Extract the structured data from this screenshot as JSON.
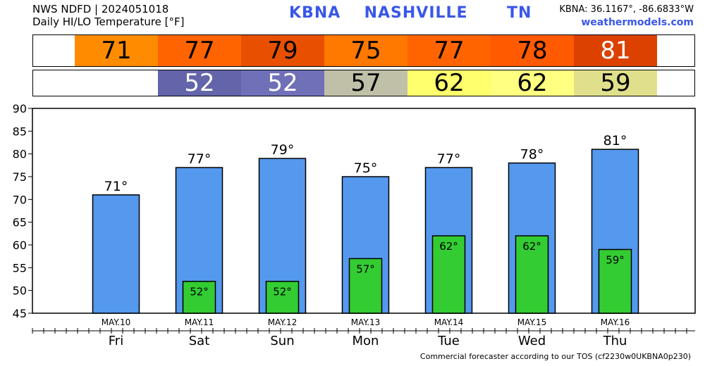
{
  "header": {
    "line1": "NWS NDFD | 2024051018",
    "line2": "Daily HI/LO Temperature [°F]",
    "station": "KBNA",
    "city": "NASHVILLE",
    "state": "TN",
    "coords": "KBNA: 36.1167°, -86.6833°W",
    "site": "weathermodels.com"
  },
  "footer": "Commercial forecaster according to our TOS (cf2230w0UKBNA0p230)",
  "hi_strip": [
    {
      "value": "71",
      "color": "#ff8c00",
      "text_color": "#000000"
    },
    {
      "value": "77",
      "color": "#ff6400",
      "text_color": "#000000"
    },
    {
      "value": "79",
      "color": "#e85000",
      "text_color": "#000000"
    },
    {
      "value": "75",
      "color": "#ff7800",
      "text_color": "#000000"
    },
    {
      "value": "77",
      "color": "#ff6400",
      "text_color": "#000000"
    },
    {
      "value": "78",
      "color": "#ff5a00",
      "text_color": "#000000"
    },
    {
      "value": "81",
      "color": "#dc4100",
      "text_color": "#ffffff"
    }
  ],
  "lo_strip": [
    {
      "value": "",
      "color": "#ffffff",
      "text_color": "#000000"
    },
    {
      "value": "52",
      "color": "#6464aa",
      "text_color": "#ffffff"
    },
    {
      "value": "52",
      "color": "#7070b8",
      "text_color": "#ffffff"
    },
    {
      "value": "57",
      "color": "#c0c0a8",
      "text_color": "#000000"
    },
    {
      "value": "62",
      "color": "#ffff6e",
      "text_color": "#000000"
    },
    {
      "value": "62",
      "color": "#ffff82",
      "text_color": "#000000"
    },
    {
      "value": "59",
      "color": "#e0e08c",
      "text_color": "#000000"
    }
  ],
  "chart_data": {
    "type": "bar",
    "categories": [
      "Fri",
      "Sat",
      "Sun",
      "Mon",
      "Tue",
      "Wed",
      "Thu"
    ],
    "dates": [
      "MAY.10",
      "MAY.11",
      "MAY.12",
      "MAY.13",
      "MAY.14",
      "MAY.15",
      "MAY.16"
    ],
    "series": [
      {
        "name": "HI",
        "values": [
          71,
          77,
          79,
          75,
          77,
          78,
          81
        ],
        "color": "#5599ee"
      },
      {
        "name": "LO",
        "values": [
          null,
          52,
          52,
          57,
          62,
          62,
          59
        ],
        "color": "#33cc33"
      }
    ],
    "hi_labels": [
      "71°",
      "77°",
      "79°",
      "75°",
      "77°",
      "78°",
      "81°"
    ],
    "lo_labels": [
      "",
      "52°",
      "52°",
      "57°",
      "62°",
      "62°",
      "59°"
    ],
    "ylim": [
      45,
      90
    ],
    "yticks": [
      "45",
      "50",
      "55",
      "60",
      "65",
      "70",
      "75",
      "80",
      "85",
      "90"
    ],
    "grid": false
  }
}
